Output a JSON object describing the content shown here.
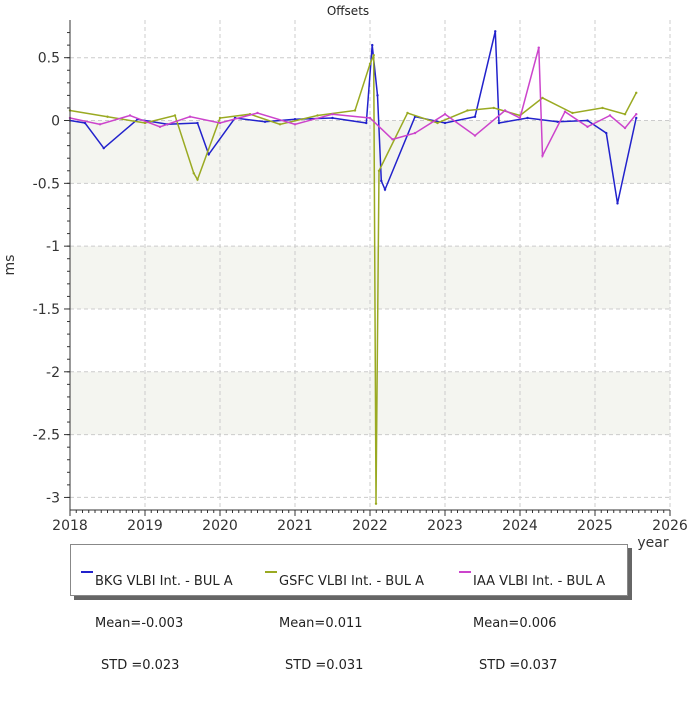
{
  "chart_data": {
    "type": "line",
    "title": "Offsets",
    "xlabel": "year",
    "ylabel": "ms",
    "xlim": [
      2018,
      2026
    ],
    "ylim": [
      -3.1,
      0.8
    ],
    "x_ticks": [
      "2018",
      "2019",
      "2020",
      "2021",
      "2022",
      "2023",
      "2024",
      "2025",
      "2026"
    ],
    "y_ticks": [
      "0.5",
      "0",
      "-0.5",
      "-1",
      "-1.5",
      "-2",
      "-2.5",
      "-3"
    ],
    "grid": true,
    "legend_position": "bottom",
    "series": [
      {
        "name": "BKG VLBI Int. - BUL A",
        "mean_label": "Mean=-0.003",
        "std_label": "STD =0.023",
        "color": "#2222cc",
        "x": [
          2018.0,
          2018.2,
          2018.45,
          2018.9,
          2019.3,
          2019.7,
          2019.85,
          2020.2,
          2020.6,
          2021.0,
          2021.5,
          2021.95,
          2022.03,
          2022.1,
          2022.15,
          2022.2,
          2022.6,
          2023.0,
          2023.4,
          2023.67,
          2023.72,
          2024.1,
          2024.5,
          2024.9,
          2025.15,
          2025.3,
          2025.55
        ],
        "y": [
          0.0,
          -0.02,
          -0.22,
          0.01,
          -0.03,
          -0.02,
          -0.27,
          0.02,
          -0.01,
          0.01,
          0.02,
          -0.02,
          0.6,
          0.2,
          -0.48,
          -0.55,
          0.03,
          -0.02,
          0.03,
          0.71,
          -0.02,
          0.02,
          -0.01,
          0.0,
          -0.1,
          -0.66,
          0.02
        ]
      },
      {
        "name": "GSFC VLBI Int. - BUL A",
        "mean_label": "Mean=0.011",
        "std_label": "STD =0.031",
        "color": "#9aaa22",
        "x": [
          2018.0,
          2018.5,
          2019.0,
          2019.4,
          2019.65,
          2019.7,
          2020.0,
          2020.4,
          2020.8,
          2021.3,
          2021.8,
          2022.0,
          2022.05,
          2022.08,
          2022.12,
          2022.5,
          2022.9,
          2023.3,
          2023.65,
          2024.0,
          2024.3,
          2024.7,
          2025.1,
          2025.4,
          2025.55
        ],
        "y": [
          0.08,
          0.03,
          -0.02,
          0.04,
          -0.42,
          -0.47,
          0.02,
          0.05,
          -0.03,
          0.04,
          0.08,
          0.45,
          0.52,
          -3.05,
          -0.4,
          0.06,
          -0.02,
          0.08,
          0.1,
          0.04,
          0.18,
          0.06,
          0.1,
          0.05,
          0.22
        ]
      },
      {
        "name": "IAA VLBI Int. - BUL A",
        "mean_label": "Mean=0.006",
        "std_label": "STD =0.037",
        "color": "#cc44cc",
        "x": [
          2018.0,
          2018.4,
          2018.8,
          2019.2,
          2019.6,
          2020.0,
          2020.5,
          2021.0,
          2021.5,
          2022.0,
          2022.3,
          2022.6,
          2023.0,
          2023.4,
          2023.8,
          2024.0,
          2024.25,
          2024.3,
          2024.6,
          2024.9,
          2025.2,
          2025.4,
          2025.55
        ],
        "y": [
          0.02,
          -0.03,
          0.04,
          -0.05,
          0.03,
          -0.02,
          0.06,
          -0.03,
          0.05,
          0.02,
          -0.15,
          -0.1,
          0.05,
          -0.12,
          0.08,
          0.02,
          0.58,
          -0.28,
          0.07,
          -0.05,
          0.04,
          -0.06,
          0.05
        ]
      }
    ]
  }
}
